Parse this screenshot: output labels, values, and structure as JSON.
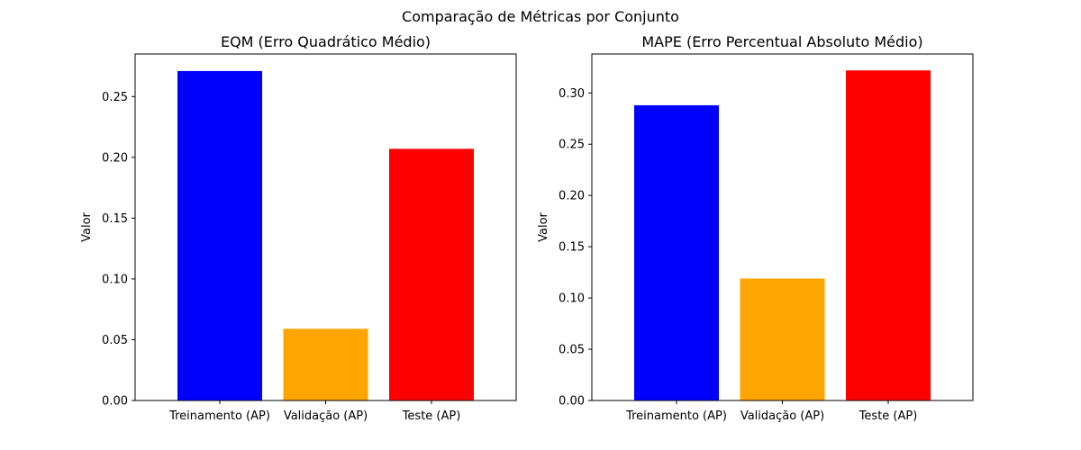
{
  "figure": {
    "suptitle": "Comparação de Métricas por Conjunto"
  },
  "chart_data": [
    {
      "type": "bar",
      "title": "EQM (Erro Quadrático Médio)",
      "xlabel": "",
      "ylabel": "Valor",
      "categories": [
        "Treinamento (AP)",
        "Validação (AP)",
        "Teste (AP)"
      ],
      "values": [
        0.271,
        0.059,
        0.207
      ],
      "colors": [
        "#0000ff",
        "#ffa500",
        "#ff0000"
      ],
      "ylim": [
        0,
        0.285
      ],
      "yticks": [
        0.0,
        0.05,
        0.1,
        0.15,
        0.2,
        0.25
      ],
      "ytick_labels": [
        "0.00",
        "0.05",
        "0.10",
        "0.15",
        "0.20",
        "0.25"
      ],
      "grid": false,
      "legend": "none"
    },
    {
      "type": "bar",
      "title": "MAPE (Erro Percentual Absoluto Médio)",
      "xlabel": "",
      "ylabel": "Valor",
      "categories": [
        "Treinamento (AP)",
        "Validação (AP)",
        "Teste (AP)"
      ],
      "values": [
        0.288,
        0.119,
        0.322
      ],
      "colors": [
        "#0000ff",
        "#ffa500",
        "#ff0000"
      ],
      "ylim": [
        0,
        0.338
      ],
      "yticks": [
        0.0,
        0.05,
        0.1,
        0.15,
        0.2,
        0.25,
        0.3
      ],
      "ytick_labels": [
        "0.00",
        "0.05",
        "0.10",
        "0.15",
        "0.20",
        "0.25",
        "0.30"
      ],
      "grid": false,
      "legend": "none"
    }
  ]
}
